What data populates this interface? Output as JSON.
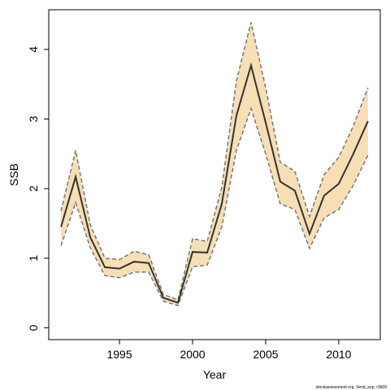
{
  "chart_data": {
    "type": "line",
    "xlabel": "Year",
    "ylabel": "SSB",
    "footnote": "stockassessment.org, Vend_exp, r3609",
    "x": [
      1991,
      1992,
      1993,
      1994,
      1995,
      1996,
      1997,
      1998,
      1999,
      2000,
      2001,
      2002,
      2003,
      2004,
      2005,
      2006,
      2007,
      2008,
      2009,
      2010,
      2011,
      2012
    ],
    "values": [
      1.45,
      2.17,
      1.3,
      0.87,
      0.85,
      0.95,
      0.93,
      0.43,
      0.36,
      1.09,
      1.08,
      1.78,
      3.05,
      3.77,
      2.95,
      2.1,
      1.97,
      1.35,
      1.9,
      2.07,
      2.5,
      2.97
    ],
    "lower": [
      1.18,
      1.8,
      1.15,
      0.75,
      0.72,
      0.8,
      0.8,
      0.38,
      0.32,
      0.88,
      0.9,
      1.45,
      2.55,
      3.15,
      2.5,
      1.78,
      1.7,
      1.14,
      1.58,
      1.7,
      2.05,
      2.48
    ],
    "upper": [
      1.68,
      2.55,
      1.48,
      1.0,
      0.98,
      1.1,
      1.05,
      0.48,
      0.4,
      1.28,
      1.24,
      2.02,
      3.55,
      4.39,
      3.45,
      2.38,
      2.25,
      1.6,
      2.2,
      2.45,
      2.9,
      3.45
    ],
    "color": "#333333",
    "band_color": "#f7deb4",
    "bound_color": "#777777",
    "xlim": [
      1990.16,
      2012.84
    ],
    "ylim": [
      -0.17,
      4.57
    ],
    "xticks": [
      1995,
      2000,
      2005,
      2010
    ],
    "yticks": [
      0,
      1,
      2,
      3,
      4
    ]
  }
}
